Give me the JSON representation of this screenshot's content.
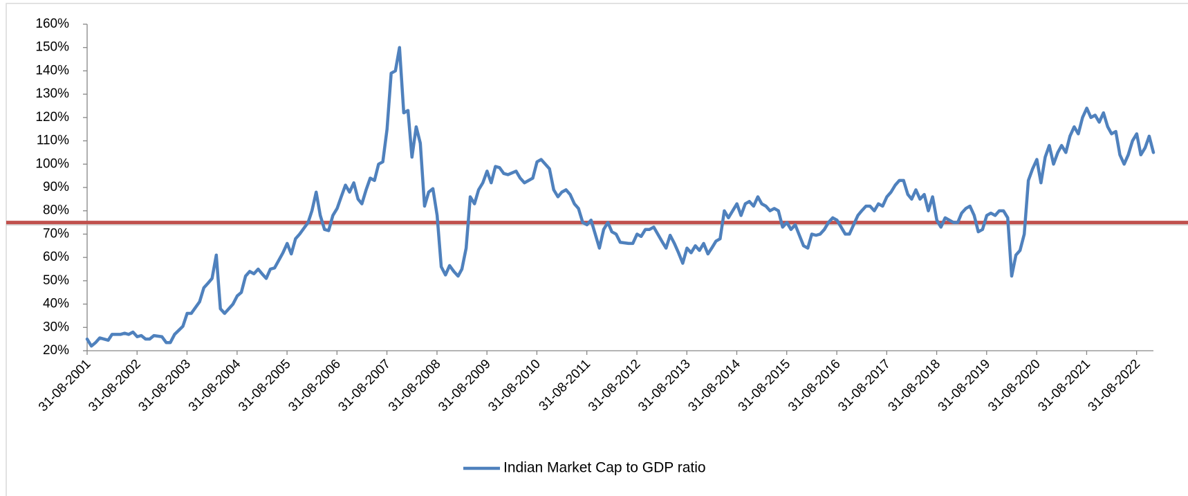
{
  "chart_data": {
    "type": "line",
    "x": [
      "31-08-2001",
      "01-10-2001",
      "01-11-2001",
      "01-12-2001",
      "01-02-2002",
      "01-03-2002",
      "01-05-2002",
      "01-06-2002",
      "01-07-2002",
      "01-08-2002",
      "01-09-2002",
      "01-10-2002",
      "01-11-2002",
      "01-12-2002",
      "01-01-2003",
      "01-03-2003",
      "01-04-2003",
      "01-05-2003",
      "01-06-2003",
      "01-08-2003",
      "01-09-2003",
      "01-10-2003",
      "01-12-2003",
      "01-01-2004",
      "01-02-2004",
      "01-03-2004",
      "01-04-2004",
      "01-05-2004",
      "01-06-2004",
      "01-08-2004",
      "01-09-2004",
      "01-10-2004",
      "01-11-2004",
      "01-12-2004",
      "01-01-2005",
      "01-02-2005",
      "01-03-2005",
      "01-04-2005",
      "01-05-2005",
      "01-06-2005",
      "01-08-2005",
      "01-09-2005",
      "01-10-2005",
      "01-11-2005",
      "01-12-2005",
      "01-02-2006",
      "01-03-2006",
      "01-04-2006",
      "01-05-2006",
      "01-06-2006",
      "01-07-2006",
      "01-08-2006",
      "01-09-2006",
      "01-10-2006",
      "01-11-2006",
      "01-12-2006",
      "01-01-2007",
      "01-02-2007",
      "01-03-2007",
      "01-04-2007",
      "01-05-2007",
      "01-06-2007",
      "01-07-2007",
      "01-08-2007",
      "01-09-2007",
      "01-10-2007",
      "01-11-2007",
      "01-12-2007",
      "01-01-2008",
      "01-02-2008",
      "01-03-2008",
      "01-04-2008",
      "01-05-2008",
      "01-06-2008",
      "01-07-2008",
      "01-08-2008",
      "01-09-2008",
      "01-10-2008",
      "01-11-2008",
      "01-12-2008",
      "01-01-2009",
      "01-02-2009",
      "01-03-2009",
      "01-04-2009",
      "01-05-2009",
      "01-06-2009",
      "01-07-2009",
      "01-08-2009",
      "01-09-2009",
      "01-10-2009",
      "01-11-2009",
      "01-12-2009",
      "01-01-2010",
      "01-02-2010",
      "01-04-2010",
      "01-05-2010",
      "01-06-2010",
      "01-08-2010",
      "01-09-2010",
      "01-10-2010",
      "01-12-2010",
      "01-01-2011",
      "01-02-2011",
      "01-03-2011",
      "01-04-2011",
      "01-05-2011",
      "01-06-2011",
      "01-07-2011",
      "01-08-2011",
      "01-09-2011",
      "01-10-2011",
      "01-12-2011",
      "01-01-2012",
      "01-02-2012",
      "01-03-2012",
      "01-04-2012",
      "01-05-2012",
      "01-07-2012",
      "01-08-2012",
      "01-09-2012",
      "01-10-2012",
      "01-11-2012",
      "01-12-2012",
      "01-01-2013",
      "01-03-2013",
      "01-04-2013",
      "01-05-2013",
      "01-06-2013",
      "01-07-2013",
      "01-08-2013",
      "01-09-2013",
      "01-10-2013",
      "01-11-2013",
      "01-12-2013",
      "01-01-2014",
      "01-02-2014",
      "01-03-2014",
      "01-04-2014",
      "01-05-2014",
      "01-06-2014",
      "01-07-2014",
      "01-08-2014",
      "01-09-2014",
      "01-10-2014",
      "01-11-2014",
      "01-12-2014",
      "01-01-2015",
      "01-02-2015",
      "01-03-2015",
      "01-04-2015",
      "01-05-2015",
      "01-06-2015",
      "01-07-2015",
      "01-08-2015",
      "01-09-2015",
      "01-10-2015",
      "01-11-2015",
      "01-01-2016",
      "01-02-2016",
      "01-03-2016",
      "01-04-2016",
      "01-05-2016",
      "01-06-2016",
      "01-07-2016",
      "01-08-2016",
      "01-09-2016",
      "01-11-2016",
      "01-12-2016",
      "01-01-2017",
      "01-02-2017",
      "01-03-2017",
      "01-04-2017",
      "01-05-2017",
      "01-06-2017",
      "01-07-2017",
      "01-08-2017",
      "01-09-2017",
      "01-10-2017",
      "01-11-2017",
      "01-12-2017",
      "01-01-2018",
      "01-02-2018",
      "01-03-2018",
      "01-04-2018",
      "01-05-2018",
      "01-06-2018",
      "01-07-2018",
      "01-08-2018",
      "01-09-2018",
      "01-10-2018",
      "01-11-2018",
      "01-12-2018",
      "01-01-2019",
      "01-02-2019",
      "01-03-2019",
      "01-04-2019",
      "01-05-2019",
      "01-06-2019",
      "01-07-2019",
      "01-08-2019",
      "01-09-2019",
      "01-10-2019",
      "01-11-2019",
      "01-12-2019",
      "01-01-2020",
      "01-02-2020",
      "01-03-2020",
      "01-04-2020",
      "01-05-2020",
      "01-06-2020",
      "01-07-2020",
      "01-08-2020",
      "01-09-2020",
      "01-10-2020",
      "01-11-2020",
      "01-12-2020",
      "01-01-2021",
      "01-02-2021",
      "01-03-2021",
      "01-04-2021",
      "01-05-2021",
      "01-06-2021",
      "01-07-2021",
      "01-08-2021",
      "01-09-2021",
      "01-10-2021",
      "01-11-2021",
      "01-12-2021",
      "01-01-2022",
      "01-02-2022",
      "01-03-2022",
      "01-04-2022",
      "01-05-2022",
      "01-06-2022",
      "01-07-2022",
      "01-08-2022",
      "01-09-2022",
      "01-10-2022",
      "01-11-2022",
      "01-12-2022",
      "01-01-2023"
    ],
    "series": [
      {
        "name": "Indian Market Cap to GDP ratio",
        "color": "#4f81bd",
        "values": [
          25,
          22,
          23.5,
          25.5,
          24.5,
          27,
          27,
          27.5,
          27,
          28,
          26,
          26.5,
          25,
          25,
          26.5,
          26,
          23.5,
          23.5,
          27,
          30.5,
          36,
          36,
          41,
          47,
          49,
          51,
          61,
          38,
          36,
          40,
          43.5,
          45,
          52,
          54,
          53,
          55,
          53,
          51,
          55,
          55.5,
          62,
          66,
          61.5,
          68,
          70,
          75,
          80,
          88,
          78,
          72,
          71.5,
          78,
          81,
          86,
          91,
          88,
          92,
          85,
          83,
          89,
          94,
          93,
          100,
          101,
          115,
          139,
          140,
          150,
          122,
          123,
          103,
          116,
          109,
          82,
          88,
          89.5,
          78,
          56,
          52.5,
          56.5,
          54,
          52,
          55,
          64,
          86,
          83,
          89,
          92,
          97,
          92,
          99,
          98.5,
          96,
          95.5,
          97,
          94,
          92,
          94,
          101,
          102,
          98,
          89,
          86,
          88,
          89,
          87,
          83,
          81,
          75,
          74,
          76,
          64,
          72,
          75,
          71,
          70,
          66.5,
          66,
          66,
          70,
          69,
          72,
          72,
          73,
          67,
          64,
          69.5,
          66,
          62,
          57.5,
          64,
          62,
          65,
          63,
          66,
          61.5,
          64,
          67,
          68,
          80,
          77,
          80,
          83,
          78,
          83,
          84,
          82,
          86,
          83,
          82,
          80,
          81,
          80,
          73,
          75,
          72,
          74,
          65,
          64,
          70,
          69.5,
          70,
          72,
          75,
          77,
          76,
          70,
          70,
          74,
          78,
          80,
          82,
          82,
          80,
          83,
          82,
          86,
          88,
          91,
          93,
          93,
          87,
          85,
          89,
          85,
          87,
          80,
          86,
          76,
          73,
          77,
          76,
          75,
          75,
          79,
          81,
          82,
          78,
          71,
          72,
          78,
          79,
          78,
          80,
          80,
          77,
          52,
          61,
          63,
          70,
          93,
          98,
          102,
          92,
          103,
          108,
          100,
          105,
          108,
          105,
          112,
          116,
          113,
          120,
          124,
          120,
          121,
          118,
          122,
          116,
          113,
          114,
          104,
          100,
          104,
          110,
          113,
          104,
          107,
          112,
          105
        ]
      }
    ],
    "xlim": [
      "31-08-2001",
      "01-01-2023"
    ],
    "xticks": [
      "31-08-2001",
      "31-08-2002",
      "31-08-2003",
      "31-08-2004",
      "31-08-2005",
      "31-08-2006",
      "31-08-2007",
      "31-08-2008",
      "31-08-2009",
      "31-08-2010",
      "31-08-2011",
      "31-08-2012",
      "31-08-2013",
      "31-08-2014",
      "31-08-2015",
      "31-08-2016",
      "31-08-2017",
      "31-08-2018",
      "31-08-2019",
      "31-08-2020",
      "31-08-2021",
      "31-08-2022"
    ],
    "ylim": [
      20,
      160
    ],
    "yticks": [
      {
        "value": 20,
        "label": "20%"
      },
      {
        "value": 30,
        "label": "30%"
      },
      {
        "value": 40,
        "label": "40%"
      },
      {
        "value": 50,
        "label": "50%"
      },
      {
        "value": 60,
        "label": "60%"
      },
      {
        "value": 70,
        "label": "70%"
      },
      {
        "value": 80,
        "label": "80%"
      },
      {
        "value": 90,
        "label": "90%"
      },
      {
        "value": 100,
        "label": "100%"
      },
      {
        "value": 110,
        "label": "110%"
      },
      {
        "value": 120,
        "label": "120%"
      },
      {
        "value": 130,
        "label": "130%"
      },
      {
        "value": 140,
        "label": "140%"
      },
      {
        "value": 150,
        "label": "150%"
      },
      {
        "value": 160,
        "label": "160%"
      }
    ],
    "reference_line": {
      "value": 75,
      "color": "#c0504d"
    },
    "legend": "bottom"
  }
}
